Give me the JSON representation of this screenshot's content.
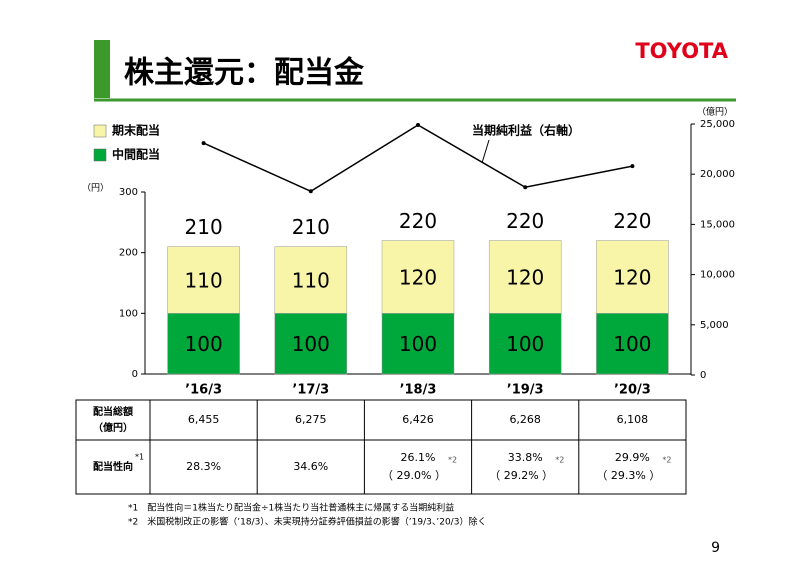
{
  "header": {
    "title": "株主還元：配当金",
    "logo": "TOYOTA"
  },
  "chart_data": {
    "type": "bar",
    "stacked": true,
    "categories": [
      "’16/3",
      "’17/3",
      "’18/3",
      "’19/3",
      "’20/3"
    ],
    "ylabel": "（円）",
    "y2label": "（億円）",
    "ylim": [
      0,
      300
    ],
    "yticks": [
      0,
      100,
      200,
      300
    ],
    "y2lim": [
      0,
      25000
    ],
    "y2ticks": [
      0,
      {
        "value": 5000,
        "label": "5,000"
      },
      {
        "value": 10000,
        "label": "10,000"
      },
      {
        "value": 15000,
        "label": "15,000"
      },
      {
        "value": 20000,
        "label": "20,000"
      },
      {
        "value": 25000,
        "label": "25,000"
      }
    ],
    "series": [
      {
        "name": "中間配当",
        "color": "#00a83c",
        "values": [
          100,
          100,
          100,
          100,
          100
        ]
      },
      {
        "name": "期末配当",
        "color": "#f8f5a8",
        "values": [
          110,
          110,
          120,
          120,
          120
        ]
      },
      {
        "name": "当期純利益（右軸）",
        "type": "line",
        "axis": "y2",
        "color": "#000000",
        "values": [
          23100,
          18300,
          24900,
          18700,
          20800
        ]
      }
    ],
    "totals": [
      210,
      210,
      220,
      220,
      220
    ]
  },
  "table": {
    "rows": [
      {
        "label": "配当総額",
        "sublabel": "（億円）",
        "cells": [
          {
            "text": "6,455"
          },
          {
            "text": "6,275"
          },
          {
            "text": "6,426"
          },
          {
            "text": "6,268"
          },
          {
            "text": "6,108"
          }
        ]
      },
      {
        "label": "配当性向",
        "note": "*1",
        "cells": [
          {
            "text": "28.3%"
          },
          {
            "text": "34.6%"
          },
          {
            "text": "26.1%",
            "note": "*2",
            "sub": "（ 29.0% ）"
          },
          {
            "text": "33.8%",
            "note": "*2",
            "sub": "（ 29.2% ）"
          },
          {
            "text": "29.9%",
            "note": "*2",
            "sub": "（ 29.3% ）"
          }
        ]
      }
    ]
  },
  "footnotes": [
    "*1　配当性向＝1株当たり配当金÷1株当たり当社普通株主に帰属する当期純利益",
    "*2　米国税制改正の影響（’18/3）、未実現持分証券評価損益の影響（’19/3、’20/3）除く"
  ],
  "page_number": "9"
}
